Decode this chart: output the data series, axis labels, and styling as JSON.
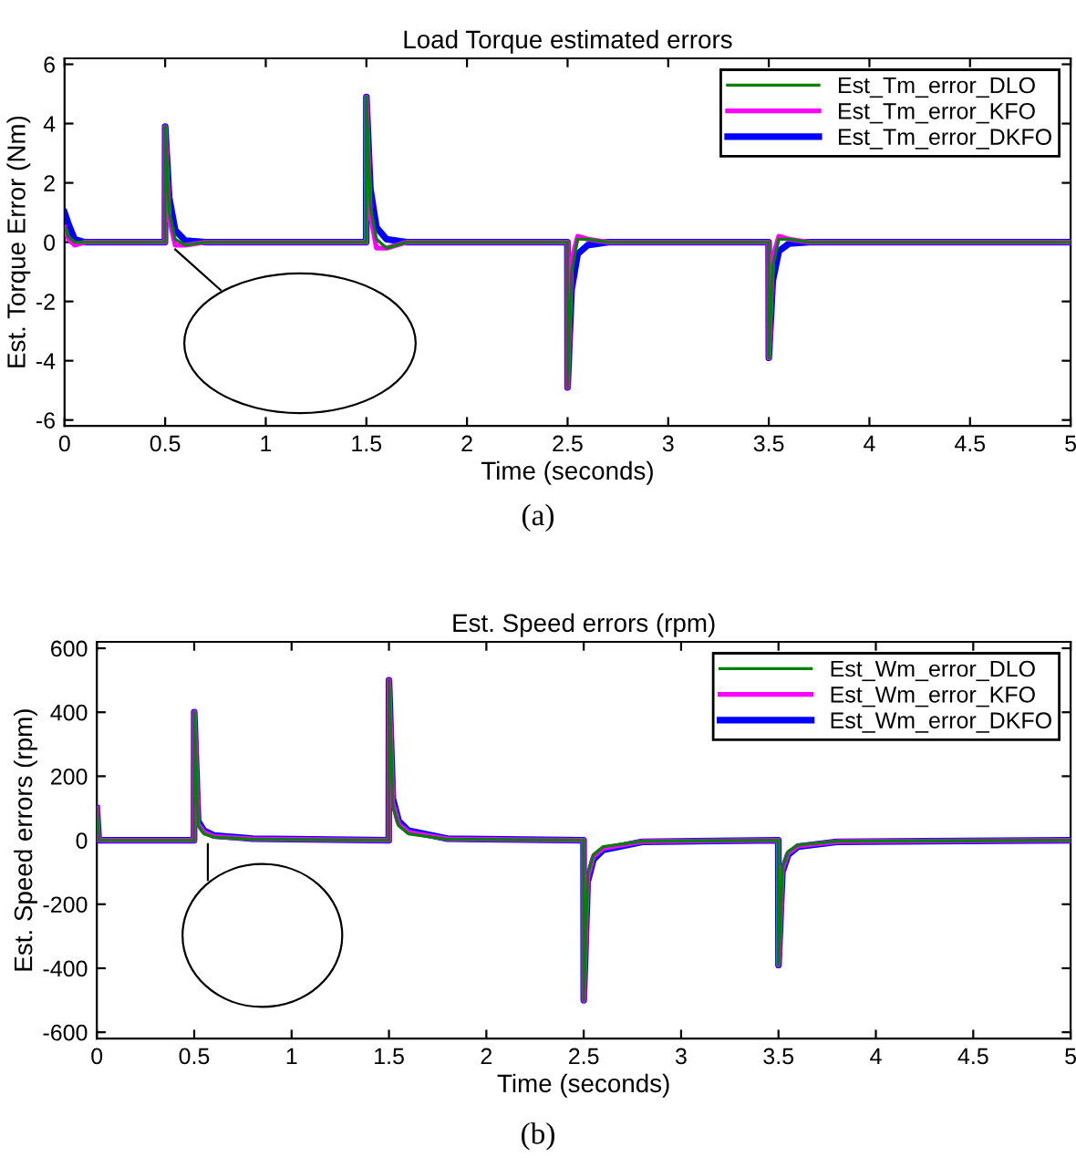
{
  "chart_data": [
    {
      "type": "line",
      "title": "Load Torque estimated errors",
      "xlabel": "Time (seconds)",
      "ylabel": "Est. Torque Error (Nm)",
      "annotations": [
        "(a)"
      ],
      "x": [
        0,
        0.02,
        0.05,
        0.1,
        0.499,
        0.5,
        0.52,
        0.55,
        0.6,
        0.7,
        1.499,
        1.5,
        1.52,
        1.55,
        1.6,
        1.7,
        2.499,
        2.5,
        2.52,
        2.55,
        2.6,
        2.7,
        3.499,
        3.5,
        3.52,
        3.55,
        3.6,
        3.7,
        5
      ],
      "series": [
        {
          "name": "Est_Tm_error_DLO",
          "color": "#008000",
          "values": [
            0.5,
            0.2,
            0,
            0,
            0,
            3.9,
            1.0,
            0.1,
            -0.1,
            0,
            0,
            4.9,
            1.2,
            0.1,
            -0.2,
            0,
            0,
            -4.9,
            -1.0,
            0.1,
            0.1,
            0,
            0,
            -3.9,
            -0.8,
            0.1,
            0.1,
            0,
            0
          ]
        },
        {
          "name": "Est_Tm_error_KFO",
          "color": "#ff00ff",
          "values": [
            0.5,
            0.1,
            -0.1,
            0,
            0,
            3.9,
            0.8,
            -0.1,
            -0.1,
            0,
            0,
            4.9,
            0.9,
            -0.2,
            -0.2,
            0,
            0,
            -4.9,
            -0.6,
            0.2,
            0.1,
            0,
            0,
            -3.9,
            -0.5,
            0.2,
            0.1,
            0,
            0
          ]
        },
        {
          "name": "Est_Tm_error_DKFO",
          "color": "#0000ff",
          "values": [
            1,
            0.6,
            0.1,
            0,
            0,
            3.9,
            1.5,
            0.4,
            0.05,
            0,
            0,
            4.9,
            1.8,
            0.5,
            0.1,
            0,
            0,
            -4.9,
            -1.6,
            -0.4,
            -0.1,
            0,
            0,
            -3.9,
            -1.3,
            -0.3,
            -0.05,
            0,
            0
          ]
        }
      ],
      "xlim": [
        0,
        5
      ],
      "xticks": [
        0,
        0.5,
        1,
        1.5,
        2,
        2.5,
        3,
        3.5,
        4,
        4.5,
        5
      ],
      "ylim": [
        -6.2,
        6.2
      ],
      "yticks": [
        -6,
        -4,
        -2,
        0,
        2,
        4,
        6
      ],
      "legend": "top right",
      "grid": false
    },
    {
      "type": "line",
      "title": "Est. Speed errors (rpm)",
      "xlabel": "Time (seconds)",
      "ylabel": "Est. Speed errors (rpm)",
      "annotations": [
        "(b)"
      ],
      "x": [
        0,
        0.01,
        0.499,
        0.5,
        0.52,
        0.55,
        0.6,
        0.8,
        1.499,
        1.5,
        1.52,
        1.55,
        1.6,
        1.8,
        2.499,
        2.5,
        2.52,
        2.55,
        2.6,
        2.8,
        3.499,
        3.5,
        3.52,
        3.55,
        3.6,
        3.8,
        5
      ],
      "series": [
        {
          "name": "Est_Wm_error_DLO",
          "color": "#008000",
          "values": [
            100,
            0,
            0,
            400,
            45,
            20,
            10,
            3,
            0,
            500,
            105,
            45,
            20,
            3,
            0,
            -500,
            -105,
            -45,
            -20,
            -3,
            0,
            -390,
            -85,
            -35,
            -15,
            -3,
            0
          ]
        },
        {
          "name": "Est_Wm_error_KFO",
          "color": "#ff00ff",
          "values": [
            100,
            0,
            0,
            400,
            50,
            25,
            12,
            4,
            0,
            500,
            115,
            50,
            25,
            4,
            0,
            -500,
            -115,
            -50,
            -25,
            -4,
            0,
            -390,
            -90,
            -40,
            -18,
            -4,
            0
          ]
        },
        {
          "name": "Est_Wm_error_DKFO",
          "color": "#0000ff",
          "values": [
            100,
            0,
            0,
            400,
            60,
            30,
            15,
            5,
            0,
            500,
            130,
            60,
            30,
            5,
            0,
            -500,
            -130,
            -60,
            -30,
            -5,
            0,
            -390,
            -100,
            -45,
            -20,
            -5,
            0
          ]
        }
      ],
      "xlim": [
        0,
        5
      ],
      "xticks": [
        0,
        0.5,
        1,
        1.5,
        2,
        2.5,
        3,
        3.5,
        4,
        4.5,
        5
      ],
      "ylim": [
        -620,
        620
      ],
      "yticks": [
        -600,
        -400,
        -200,
        0,
        200,
        400,
        600
      ],
      "legend": "top right",
      "grid": false
    }
  ]
}
